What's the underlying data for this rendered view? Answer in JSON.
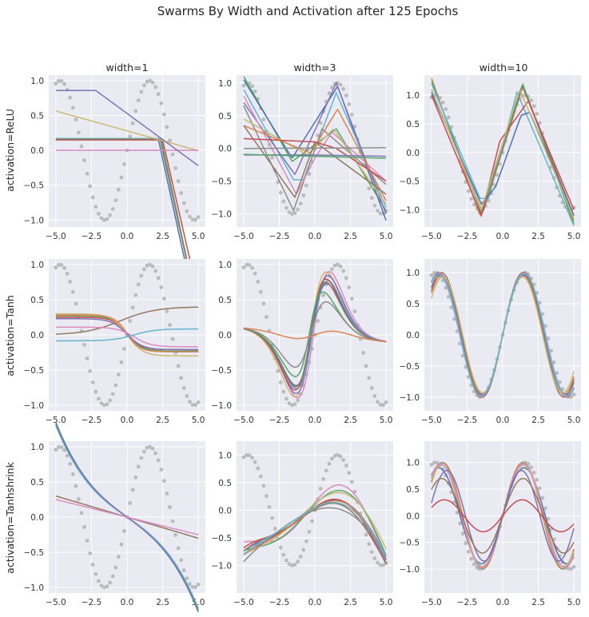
{
  "figure": {
    "title": "Swarms By Width and Activation after 125 Epochs",
    "col_titles": [
      "width=1",
      "width=3",
      "width=10"
    ],
    "row_labels": [
      "activation=ReLU",
      "activation=Tanh",
      "activation=Tanhshrink"
    ]
  },
  "palette": [
    "#4C72B0",
    "#DD8452",
    "#55A868",
    "#C44E52",
    "#8172B3",
    "#937860",
    "#DA8BC3",
    "#8C8C8C",
    "#CCB974",
    "#64B5CD"
  ],
  "colors": {
    "background": "#EAEAF2",
    "grid": "#FFFFFF",
    "target_dots": "#BBBBBB"
  },
  "chart_data": {
    "type": "line",
    "description_target": "sin(x) sampled as grey dots",
    "x_range": [
      -5,
      5
    ],
    "x_ticks": [
      -5.0,
      -2.5,
      0.0,
      2.5,
      5.0
    ],
    "x_tick_labels": [
      "−5.0",
      "−2.5",
      "0.0",
      "2.5",
      "5.0"
    ],
    "panels": [
      {
        "row": 0,
        "col": 0,
        "kind": "relu1",
        "ylim": [
          -1.1,
          1.08
        ],
        "yticks": [
          -1.0,
          -0.5,
          0.0,
          0.5,
          1.0
        ],
        "series": [
          {
            "color": 0,
            "params": [
              0.16,
              2.2,
              -0.94
            ]
          },
          {
            "color": 9,
            "params": [
              0.17,
              2.3,
              -0.93
            ]
          },
          {
            "color": 3,
            "params": [
              0.15,
              2.5,
              -0.9
            ]
          },
          {
            "color": 2,
            "params": [
              0.16,
              2.4,
              -0.96
            ]
          },
          {
            "color": 5,
            "params": [
              0.16,
              2.35,
              -0.95
            ]
          },
          {
            "color": 8,
            "params": [
              0.28,
              -0.057
            ]
          },
          {
            "color": 6,
            "params": [
              0.0,
              0.0
            ]
          },
          {
            "color": 4,
            "params": [
              0.86,
              -2.2,
              -0.15
            ]
          }
        ]
      },
      {
        "row": 0,
        "col": 1,
        "kind": "points",
        "ylim": [
          -1.2,
          1.12
        ],
        "yticks": [
          -1.0,
          -0.5,
          0.0,
          0.5,
          1.0
        ],
        "series": [
          {
            "color": 2,
            "pts": [
              [
                -5,
                1.1
              ],
              [
                -1.6,
                -0.2
              ],
              [
                1.5,
                0.3
              ],
              [
                5,
                -0.95
              ]
            ]
          },
          {
            "color": 0,
            "pts": [
              [
                -5,
                1.05
              ],
              [
                -1.6,
                -0.15
              ],
              [
                1.6,
                0.95
              ],
              [
                5,
                -1.1
              ]
            ]
          },
          {
            "color": 9,
            "pts": [
              [
                -5,
                0.9
              ],
              [
                -1.5,
                -0.48
              ],
              [
                -0.8,
                -0.48
              ],
              [
                1.5,
                0.85
              ],
              [
                5,
                -0.9
              ]
            ]
          },
          {
            "color": 4,
            "pts": [
              [
                -5,
                0.7
              ],
              [
                -1.4,
                -0.4
              ],
              [
                1.5,
                1.0
              ],
              [
                5,
                -1.0
              ]
            ]
          },
          {
            "color": 7,
            "pts": [
              [
                -5,
                0.65
              ],
              [
                -1.5,
                -0.95
              ],
              [
                0.5,
                0.3
              ],
              [
                5,
                -0.55
              ]
            ]
          },
          {
            "color": 6,
            "pts": [
              [
                -5,
                0.8
              ],
              [
                -1.3,
                -0.7
              ],
              [
                0,
                -0.15
              ],
              [
                1.2,
                0.25
              ],
              [
                5,
                -0.5
              ]
            ]
          },
          {
            "color": 8,
            "pts": [
              [
                -5,
                0.45
              ],
              [
                -0.5,
                -0.1
              ],
              [
                1.3,
                0.3
              ],
              [
                5,
                -0.85
              ]
            ]
          },
          {
            "color": 1,
            "pts": [
              [
                -5,
                0.35
              ],
              [
                -0.3,
                -0.07
              ],
              [
                1.6,
                0.6
              ],
              [
                5,
                -0.8
              ]
            ]
          },
          {
            "color": 5,
            "pts": [
              [
                -5,
                0.35
              ],
              [
                -1.4,
                -0.75
              ],
              [
                0,
                0.1
              ],
              [
                5,
                -0.7
              ]
            ]
          },
          {
            "color": 3,
            "pts": [
              [
                -5,
                0.15
              ],
              [
                0,
                0.1
              ],
              [
                1.5,
                0.0
              ],
              [
                5,
                -0.5
              ]
            ]
          },
          {
            "color": 7,
            "pts": [
              [
                -5,
                0.0
              ],
              [
                5,
                0.01
              ]
            ]
          },
          {
            "color": 4,
            "pts": [
              [
                -5,
                -0.1
              ],
              [
                0,
                -0.1
              ],
              [
                5,
                -0.12
              ]
            ]
          },
          {
            "color": 2,
            "pts": [
              [
                -5,
                -0.09
              ],
              [
                5,
                -0.15
              ]
            ]
          }
        ]
      },
      {
        "row": 0,
        "col": 2,
        "kind": "points",
        "ylim": [
          -1.3,
          1.35
        ],
        "yticks": [
          -1.0,
          -0.5,
          0.0,
          0.5,
          1.0
        ],
        "series": [
          {
            "color": 1,
            "pts": [
              [
                -5,
                1.3
              ],
              [
                -1.6,
                -1.1
              ],
              [
                1.4,
                1.2
              ],
              [
                5,
                -1.2
              ]
            ]
          },
          {
            "color": 2,
            "pts": [
              [
                -5,
                1.25
              ],
              [
                -1.5,
                -1.05
              ],
              [
                1.4,
                1.2
              ],
              [
                5,
                -1.25
              ]
            ]
          },
          {
            "color": 9,
            "pts": [
              [
                -5,
                1.2
              ],
              [
                -1.6,
                -0.8
              ],
              [
                -1.0,
                -0.8
              ],
              [
                1.0,
                1.05
              ],
              [
                5,
                -1.28
              ]
            ]
          },
          {
            "color": 5,
            "pts": [
              [
                -5,
                1.1
              ],
              [
                -1.4,
                -1.05
              ],
              [
                1.4,
                1.15
              ],
              [
                5,
                -1.1
              ]
            ]
          },
          {
            "color": 3,
            "pts": [
              [
                -5,
                1.0
              ],
              [
                -1.5,
                -1.1
              ],
              [
                -0.2,
                0.2
              ],
              [
                1.8,
                0.9
              ],
              [
                5,
                -1.0
              ]
            ]
          },
          {
            "color": 0,
            "pts": [
              [
                -5,
                1.05
              ],
              [
                -1.5,
                -0.9
              ],
              [
                -0.5,
                -0.6
              ],
              [
                1.3,
                0.65
              ],
              [
                1.9,
                0.7
              ],
              [
                5,
                -1.1
              ]
            ]
          },
          {
            "color": 8,
            "pts": [
              [
                -5,
                1.1
              ],
              [
                -1.5,
                -1.0
              ],
              [
                1.2,
                1.1
              ],
              [
                5,
                -1.15
              ]
            ]
          }
        ]
      },
      {
        "row": 1,
        "col": 0,
        "kind": "tanh1",
        "ylim": [
          -1.08,
          1.08
        ],
        "yticks": [
          -1.0,
          -0.5,
          0.0,
          0.5,
          1.0
        ],
        "series": [
          {
            "color": 5,
            "params": [
              0.2,
              0.2,
              2.5,
              -0.47
            ]
          },
          {
            "color": 0,
            "params": [
              0.02,
              -0.26,
              1.0,
              0.0
            ]
          },
          {
            "color": 2,
            "params": [
              0.02,
              -0.25,
              1.0,
              0.0
            ]
          },
          {
            "color": 3,
            "params": [
              0.02,
              -0.23,
              1.0,
              0.0
            ]
          },
          {
            "color": 8,
            "params": [
              0.0,
              -0.3,
              1.1,
              0.0
            ]
          },
          {
            "color": 1,
            "params": [
              0.02,
              -0.26,
              0.9,
              0.0
            ]
          },
          {
            "color": 4,
            "params": [
              0.01,
              -0.22,
              1.1,
              0.0
            ]
          },
          {
            "color": 6,
            "params": [
              -0.03,
              -0.14,
              1.2,
              0.5
            ]
          },
          {
            "color": 9,
            "params": [
              0.0,
              0.085,
              1.5,
              0.5
            ]
          }
        ]
      },
      {
        "row": 1,
        "col": 1,
        "kind": "bump",
        "ylim": [
          -1.08,
          1.08
        ],
        "yticks": [
          -1.0,
          -0.5,
          0.0,
          0.5,
          1.0
        ],
        "series": [
          {
            "color": 6,
            "params": [
              0.0,
              1.55,
              1.1,
              -0.1
            ]
          },
          {
            "color": 8,
            "params": [
              0.0,
              1.5,
              1.05,
              -0.3
            ]
          },
          {
            "color": 4,
            "params": [
              0.0,
              1.45,
              1.1,
              -0.2
            ]
          },
          {
            "color": 9,
            "params": [
              0.0,
              1.3,
              1.05,
              -0.2
            ]
          },
          {
            "color": 3,
            "params": [
              0.0,
              1.3,
              1.0,
              -0.3
            ]
          },
          {
            "color": 0,
            "params": [
              0.0,
              1.2,
              1.0,
              -0.25
            ]
          },
          {
            "color": 5,
            "params": [
              0.0,
              1.2,
              0.95,
              -0.3
            ]
          },
          {
            "color": 2,
            "params": [
              0.0,
              0.9,
              0.8,
              -0.4
            ]
          },
          {
            "color": 7,
            "params": [
              0.0,
              0.8,
              1.05,
              -0.3
            ]
          },
          {
            "color": 1,
            "params": [
              0.0,
              0.27,
              3.0,
              0.0
            ]
          }
        ]
      },
      {
        "row": 1,
        "col": 2,
        "kind": "sine",
        "ylim": [
          -1.22,
          1.22
        ],
        "yticks": [
          -1.0,
          -0.5,
          0.0,
          0.5,
          1.0
        ],
        "series": [
          {
            "color": 0,
            "params": [
              0.98,
              1.05
            ]
          },
          {
            "color": 1,
            "params": [
              0.95,
              1.1
            ]
          },
          {
            "color": 2,
            "params": [
              0.97,
              1.08
            ]
          },
          {
            "color": 3,
            "params": [
              1.0,
              1.05
            ]
          },
          {
            "color": 4,
            "params": [
              0.96,
              1.07
            ]
          },
          {
            "color": 5,
            "params": [
              1.0,
              1.1
            ]
          },
          {
            "color": 6,
            "params": [
              0.99,
              1.05
            ]
          },
          {
            "color": 8,
            "params": [
              0.93,
              1.12
            ]
          },
          {
            "color": 9,
            "params": [
              0.98,
              1.04
            ]
          }
        ]
      },
      {
        "row": 2,
        "col": 0,
        "kind": "cubic",
        "ylim": [
          -1.08,
          1.08
        ],
        "yticks": [
          -1.0,
          -0.5,
          0.0,
          0.5,
          1.0
        ],
        "series": [
          {
            "color": 0,
            "params": [
              -0.15,
              -0.0048
            ]
          },
          {
            "color": 2,
            "params": [
              -0.15,
              -0.0048
            ]
          },
          {
            "color": 9,
            "params": [
              -0.14,
              -0.0048
            ]
          },
          {
            "color": 4,
            "params": [
              -0.15,
              -0.0046
            ]
          },
          {
            "color": 5,
            "params": [
              -0.06,
              0.0
            ]
          },
          {
            "color": 6,
            "params": [
              -0.05,
              0.0
            ]
          }
        ]
      },
      {
        "row": 2,
        "col": 1,
        "kind": "poly",
        "ylim": [
          -1.5,
          1.25
        ],
        "yticks": [
          -1.0,
          -0.5,
          0.0,
          0.5,
          1.0
        ],
        "series": [
          {
            "color": 6,
            "params": [
              0.14,
              0.45,
              0.0,
              0.7
            ]
          },
          {
            "color": 2,
            "params": [
              0.1,
              0.4,
              0.0,
              0.65
            ]
          },
          {
            "color": 8,
            "params": [
              0.12,
              0.35,
              0.0,
              0.6
            ]
          },
          {
            "color": 4,
            "params": [
              0.05,
              0.25,
              0.0,
              0.7
            ]
          },
          {
            "color": 0,
            "params": [
              0.05,
              0.25,
              0.0,
              0.65
            ]
          },
          {
            "color": 3,
            "params": [
              0.05,
              0.25,
              0.0,
              0.75
            ]
          },
          {
            "color": 5,
            "params": [
              0.02,
              0.2,
              0.0,
              0.75
            ]
          },
          {
            "color": 1,
            "params": [
              0.04,
              0.25,
              0.0,
              0.65
            ]
          },
          {
            "color": 7,
            "params": [
              0.0,
              0.15,
              0.0,
              0.55
            ]
          },
          {
            "color": 9,
            "params": [
              0.05,
              0.2,
              0.0,
              0.65
            ]
          }
        ]
      },
      {
        "row": 2,
        "col": 2,
        "kind": "sine",
        "ylim": [
          -1.45,
          1.4
        ],
        "yticks": [
          -1.0,
          -0.5,
          0.0,
          0.5,
          1.0
        ],
        "series": [
          {
            "color": 2,
            "params": [
              1.0,
              1.12
            ]
          },
          {
            "color": 9,
            "params": [
              1.0,
              1.1
            ]
          },
          {
            "color": 1,
            "params": [
              0.99,
              1.12
            ]
          },
          {
            "color": 0,
            "params": [
              0.9,
              1.05
            ]
          },
          {
            "color": 8,
            "params": [
              0.95,
              1.1
            ]
          },
          {
            "color": 6,
            "params": [
              0.97,
              1.08
            ]
          },
          {
            "color": 4,
            "params": [
              0.85,
              1.2
            ]
          },
          {
            "color": 5,
            "params": [
              0.7,
              1.1
            ]
          },
          {
            "color": 3,
            "params": [
              0.3,
              1.15
            ]
          }
        ]
      }
    ]
  }
}
